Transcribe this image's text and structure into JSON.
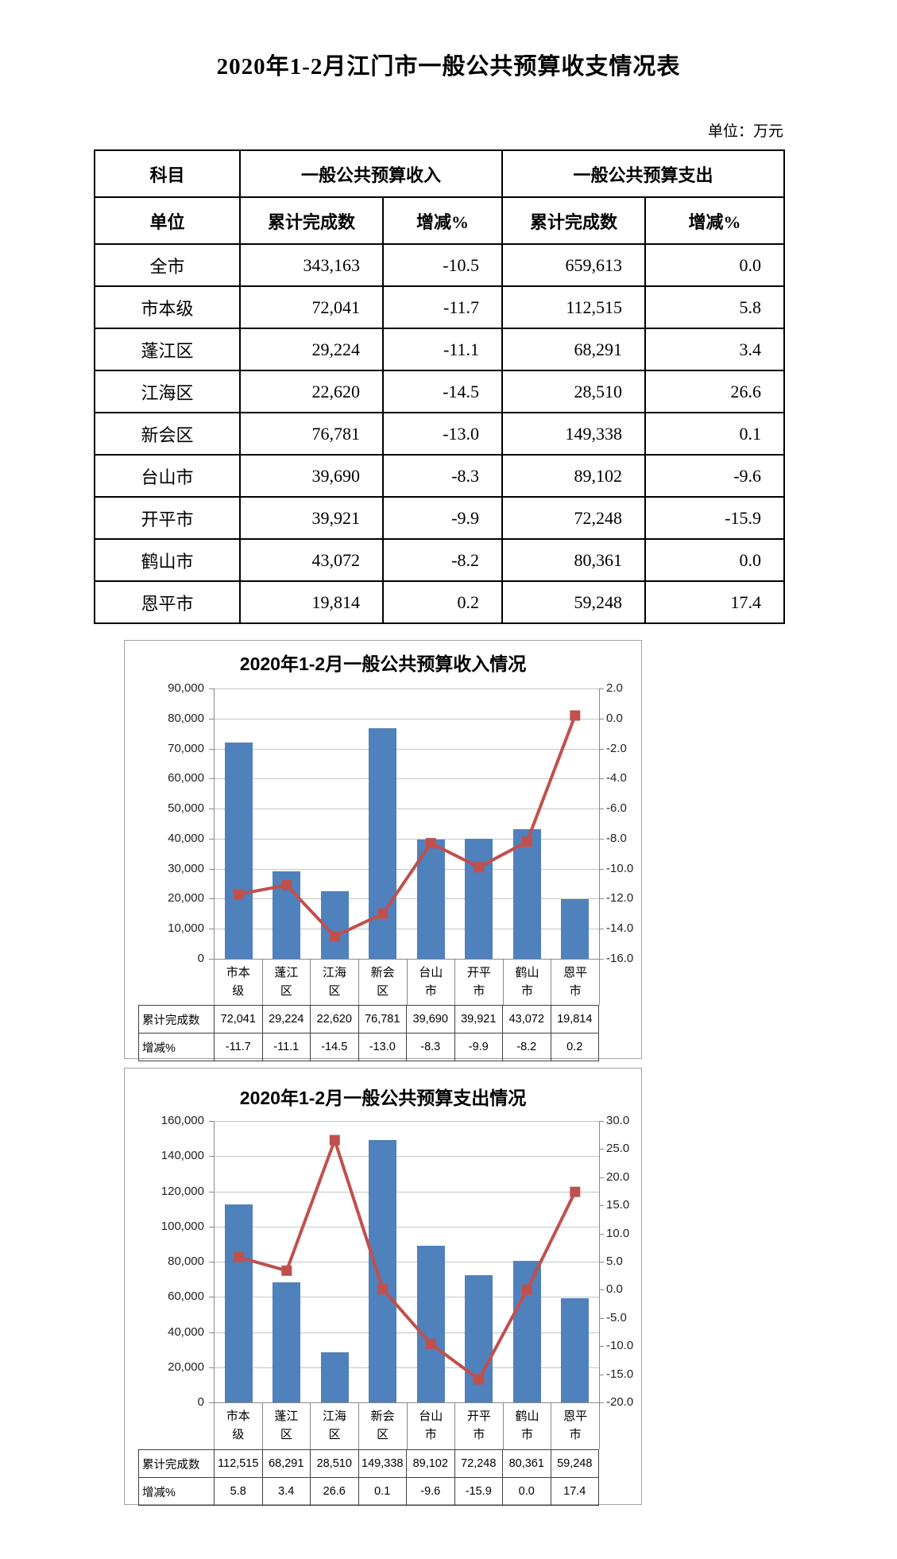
{
  "page": {
    "title": "2020年1-2月江门市一般公共预算收支情况表",
    "unit_note": "单位：万元"
  },
  "table": {
    "header": {
      "subject": "科目",
      "unit": "单位",
      "revenue_group": "一般公共预算收入",
      "expenditure_group": "一般公共预算支出",
      "cols": [
        "累计完成数",
        "增减%",
        "累计完成数",
        "增减%"
      ]
    },
    "rows": [
      {
        "name": "全市",
        "rev": "343,163",
        "rev_chg": "-10.5",
        "exp": "659,613",
        "exp_chg": "0.0"
      },
      {
        "name": "市本级",
        "rev": "72,041",
        "rev_chg": "-11.7",
        "exp": "112,515",
        "exp_chg": "5.8"
      },
      {
        "name": "蓬江区",
        "rev": "29,224",
        "rev_chg": "-11.1",
        "exp": "68,291",
        "exp_chg": "3.4"
      },
      {
        "name": "江海区",
        "rev": "22,620",
        "rev_chg": "-14.5",
        "exp": "28,510",
        "exp_chg": "26.6"
      },
      {
        "name": "新会区",
        "rev": "76,781",
        "rev_chg": "-13.0",
        "exp": "149,338",
        "exp_chg": "0.1"
      },
      {
        "name": "台山市",
        "rev": "39,690",
        "rev_chg": "-8.3",
        "exp": "89,102",
        "exp_chg": "-9.6"
      },
      {
        "name": "开平市",
        "rev": "39,921",
        "rev_chg": "-9.9",
        "exp": "72,248",
        "exp_chg": "-15.9"
      },
      {
        "name": "鹤山市",
        "rev": "43,072",
        "rev_chg": "-8.2",
        "exp": "80,361",
        "exp_chg": "0.0"
      },
      {
        "name": "恩平市",
        "rev": "19,814",
        "rev_chg": "0.2",
        "exp": "59,248",
        "exp_chg": "17.4"
      }
    ]
  },
  "colors": {
    "bar": "#4f81bd",
    "line": "#c0504d",
    "grid": "#c6c6c6",
    "axis": "#898989",
    "table_border": "#000000",
    "chart_border": "#a3a3a3"
  },
  "chart_data": [
    {
      "type": "bar+line",
      "title": "2020年1-2月一般公共预算收入情况",
      "grid": true,
      "legend": "none",
      "categories": [
        "市本级",
        "蓬江区",
        "江海区",
        "新会区",
        "台山市",
        "开平市",
        "鹤山市",
        "恩平市"
      ],
      "series": [
        {
          "name": "累计完成数",
          "type": "bar",
          "axis": "left",
          "values": [
            72041,
            29224,
            22620,
            76781,
            39690,
            39921,
            43072,
            19814
          ],
          "labels": [
            "72,041",
            "29,224",
            "22,620",
            "76,781",
            "39,690",
            "39,921",
            "43,072",
            "19,814"
          ]
        },
        {
          "name": "增减%",
          "type": "line",
          "axis": "right",
          "values": [
            -11.7,
            -11.1,
            -14.5,
            -13.0,
            -8.3,
            -9.9,
            -8.2,
            0.2
          ],
          "labels": [
            "-11.7",
            "-11.1",
            "-14.5",
            "-13.0",
            "-8.3",
            "-9.9",
            "-8.2",
            "0.2"
          ]
        }
      ],
      "left_axis": {
        "min": 0,
        "max": 90000,
        "step": 10000,
        "tick_labels": [
          "90,000",
          "80,000",
          "70,000",
          "60,000",
          "50,000",
          "40,000",
          "30,000",
          "20,000",
          "10,000",
          "0"
        ]
      },
      "right_axis": {
        "min": -16,
        "max": 2,
        "step": 2,
        "tick_labels": [
          "2.0",
          "0.0",
          "-2.0",
          "-4.0",
          "-6.0",
          "-8.0",
          "-10.0",
          "-12.0",
          "-14.0",
          "-16.0"
        ]
      }
    },
    {
      "type": "bar+line",
      "title": "2020年1-2月一般公共预算支出情况",
      "grid": true,
      "legend": "none",
      "categories": [
        "市本级",
        "蓬江区",
        "江海区",
        "新会区",
        "台山市",
        "开平市",
        "鹤山市",
        "恩平市"
      ],
      "series": [
        {
          "name": "累计完成数",
          "type": "bar",
          "axis": "left",
          "values": [
            112515,
            68291,
            28510,
            149338,
            89102,
            72248,
            80361,
            59248
          ],
          "labels": [
            "112,515",
            "68,291",
            "28,510",
            "149,338",
            "89,102",
            "72,248",
            "80,361",
            "59,248"
          ]
        },
        {
          "name": "增减%",
          "type": "line",
          "axis": "right",
          "values": [
            5.8,
            3.4,
            26.6,
            0.1,
            -9.6,
            -15.9,
            0.0,
            17.4
          ],
          "labels": [
            "5.8",
            "3.4",
            "26.6",
            "0.1",
            "-9.6",
            "-15.9",
            "0.0",
            "17.4"
          ]
        }
      ],
      "left_axis": {
        "min": 0,
        "max": 160000,
        "step": 20000,
        "tick_labels": [
          "160,000",
          "140,000",
          "120,000",
          "100,000",
          "80,000",
          "60,000",
          "40,000",
          "20,000",
          "0"
        ]
      },
      "right_axis": {
        "min": -20,
        "max": 30,
        "step": 5,
        "tick_labels": [
          "30.0",
          "25.0",
          "20.0",
          "15.0",
          "10.0",
          "5.0",
          "0.0",
          "-5.0",
          "-10.0",
          "-15.0",
          "-20.0"
        ]
      }
    }
  ]
}
